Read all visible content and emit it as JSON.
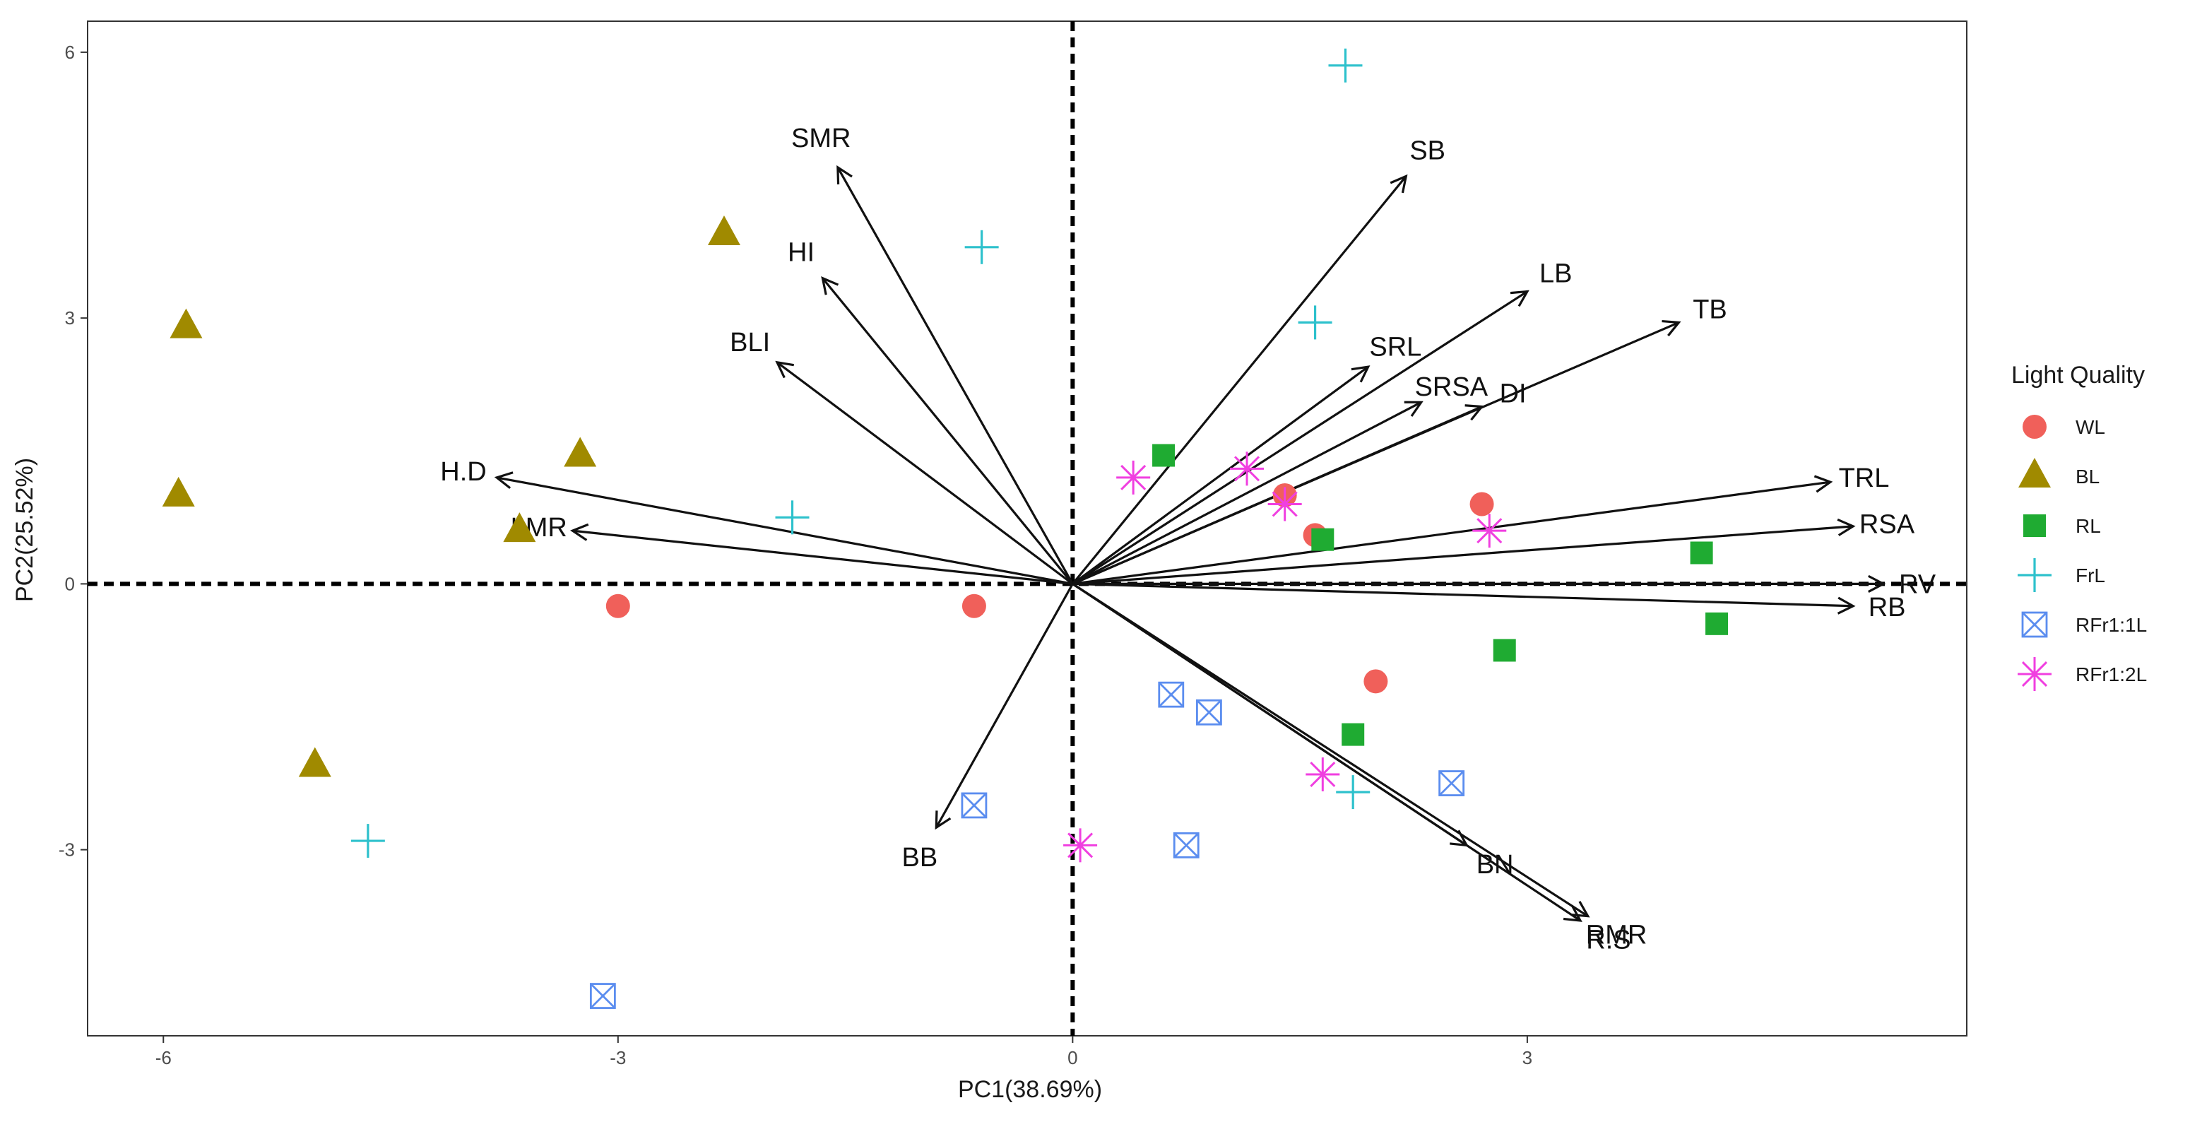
{
  "chart_data": {
    "type": "scatter",
    "subtype": "pca-biplot",
    "xlabel": "PC1(38.69%)",
    "ylabel": "PC2(25.52%)",
    "xlim": [
      -6.5,
      5.9
    ],
    "ylim": [
      -5.1,
      6.35
    ],
    "x_ticks": [
      -6,
      -3,
      0,
      3
    ],
    "y_ticks": [
      -3,
      0,
      3,
      6
    ],
    "x_tick_labels": [
      "-6",
      "-3",
      "0",
      "3"
    ],
    "y_tick_labels": [
      "-3",
      "0",
      "3",
      "6"
    ],
    "reference_lines": {
      "x": 0,
      "y": 0,
      "style": "dashed"
    },
    "grid": false,
    "legend": {
      "title": "Light Quality",
      "position": "right",
      "entries": [
        "WL",
        "BL",
        "RL",
        "FrL",
        "RFr1:1L",
        "RFr1:2L"
      ]
    },
    "series": [
      {
        "name": "WL",
        "marker": "circle",
        "color": "#F0605A",
        "points": [
          [
            -3.0,
            -0.25
          ],
          [
            -0.65,
            -0.25
          ],
          [
            1.4,
            1.0
          ],
          [
            1.6,
            0.55
          ],
          [
            2.7,
            0.9
          ],
          [
            2.0,
            -1.1
          ]
        ]
      },
      {
        "name": "BL",
        "marker": "triangle",
        "color": "#A08A00",
        "points": [
          [
            -5.85,
            2.9
          ],
          [
            -5.9,
            1.0
          ],
          [
            -2.3,
            3.95
          ],
          [
            -3.25,
            1.45
          ],
          [
            -3.65,
            0.6
          ],
          [
            -5.0,
            -2.05
          ]
        ]
      },
      {
        "name": "RL",
        "marker": "square",
        "color": "#1FAB32",
        "points": [
          [
            0.6,
            1.45
          ],
          [
            1.65,
            0.5
          ],
          [
            4.15,
            0.35
          ],
          [
            4.25,
            -0.45
          ],
          [
            2.85,
            -0.75
          ],
          [
            1.85,
            -1.7
          ]
        ]
      },
      {
        "name": "FrL",
        "marker": "plus",
        "color": "#2DC1CC",
        "points": [
          [
            1.8,
            5.85
          ],
          [
            -0.6,
            3.8
          ],
          [
            1.6,
            2.95
          ],
          [
            -1.85,
            0.75
          ],
          [
            1.85,
            -2.35
          ],
          [
            -4.65,
            -2.9
          ]
        ]
      },
      {
        "name": "RFr1:1L",
        "marker": "square-cross",
        "color": "#5B8DEF",
        "points": [
          [
            0.65,
            -1.25
          ],
          [
            0.9,
            -1.45
          ],
          [
            2.5,
            -2.25
          ],
          [
            -0.65,
            -2.5
          ],
          [
            0.75,
            -2.95
          ],
          [
            -3.1,
            -4.65
          ]
        ]
      },
      {
        "name": "RFr1:2L",
        "marker": "asterisk",
        "color": "#F03FE0",
        "points": [
          [
            0.4,
            1.2
          ],
          [
            1.15,
            1.3
          ],
          [
            1.4,
            0.9
          ],
          [
            2.75,
            0.6
          ],
          [
            1.65,
            -2.15
          ],
          [
            0.05,
            -2.95
          ]
        ]
      }
    ],
    "vectors": [
      {
        "name": "SMR",
        "x": -1.55,
        "y": 4.7
      },
      {
        "name": "HI",
        "x": -1.65,
        "y": 3.45
      },
      {
        "name": "BLI",
        "x": -1.95,
        "y": 2.5
      },
      {
        "name": "H.D",
        "x": -3.8,
        "y": 1.2
      },
      {
        "name": "LMR",
        "x": -3.3,
        "y": 0.6
      },
      {
        "name": "BB",
        "x": -0.9,
        "y": -2.75
      },
      {
        "name": "SB",
        "x": 2.2,
        "y": 4.6
      },
      {
        "name": "LB",
        "x": 3.0,
        "y": 3.3
      },
      {
        "name": "TB",
        "x": 4.0,
        "y": 2.95
      },
      {
        "name": "SRL",
        "x": 1.95,
        "y": 2.45
      },
      {
        "name": "SRSA",
        "x": 2.3,
        "y": 2.05
      },
      {
        "name": "DI",
        "x": 2.7,
        "y": 2.0
      },
      {
        "name": "TRL",
        "x": 5.0,
        "y": 1.15
      },
      {
        "name": "RSA",
        "x": 5.15,
        "y": 0.65
      },
      {
        "name": "RV",
        "x": 5.35,
        "y": 0.0
      },
      {
        "name": "RB",
        "x": 5.15,
        "y": -0.25
      },
      {
        "name": "BN",
        "x": 2.6,
        "y": -2.95
      },
      {
        "name": "RMR",
        "x": 3.4,
        "y": -3.75
      },
      {
        "name": "R.S",
        "x": 3.35,
        "y": -3.8
      }
    ]
  }
}
